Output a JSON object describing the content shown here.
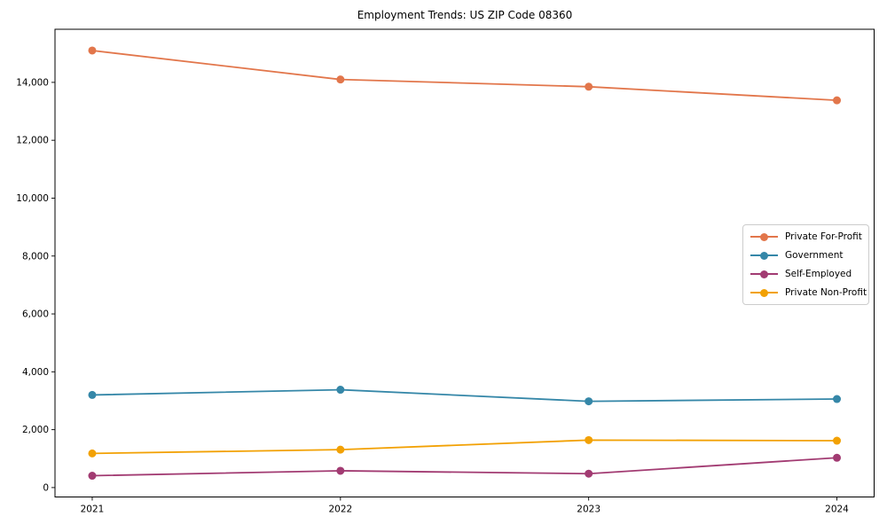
{
  "chart_data": {
    "type": "line",
    "title": "Employment Trends: US ZIP Code 08360",
    "x": [
      2021,
      2022,
      2023,
      2024
    ],
    "x_tick_labels": [
      "2021",
      "2022",
      "2023",
      "2024"
    ],
    "series": [
      {
        "name": "Private For-Profit",
        "color": "#E2764B",
        "values": [
          15100,
          14100,
          13850,
          13380
        ]
      },
      {
        "name": "Government",
        "color": "#3587A8",
        "values": [
          3200,
          3380,
          2980,
          3060
        ]
      },
      {
        "name": "Self-Employed",
        "color": "#A23B72",
        "values": [
          410,
          580,
          480,
          1030
        ]
      },
      {
        "name": "Private Non-Profit",
        "color": "#F2A104",
        "values": [
          1180,
          1310,
          1640,
          1620
        ]
      }
    ],
    "y_ticks": [
      {
        "value": 0,
        "label": "0"
      },
      {
        "value": 2000,
        "label": "2,000"
      },
      {
        "value": 4000,
        "label": "4,000"
      },
      {
        "value": 6000,
        "label": "6,000"
      },
      {
        "value": 8000,
        "label": "8,000"
      },
      {
        "value": 10000,
        "label": "10,000"
      },
      {
        "value": 12000,
        "label": "12,000"
      },
      {
        "value": 14000,
        "label": "14,000"
      }
    ],
    "xlim": [
      2020.85,
      2024.15
    ],
    "ylim": [
      -325,
      15835
    ],
    "xlabel": "",
    "ylabel": "",
    "grid": false,
    "legend_position": "center-right",
    "marker": "circle"
  }
}
